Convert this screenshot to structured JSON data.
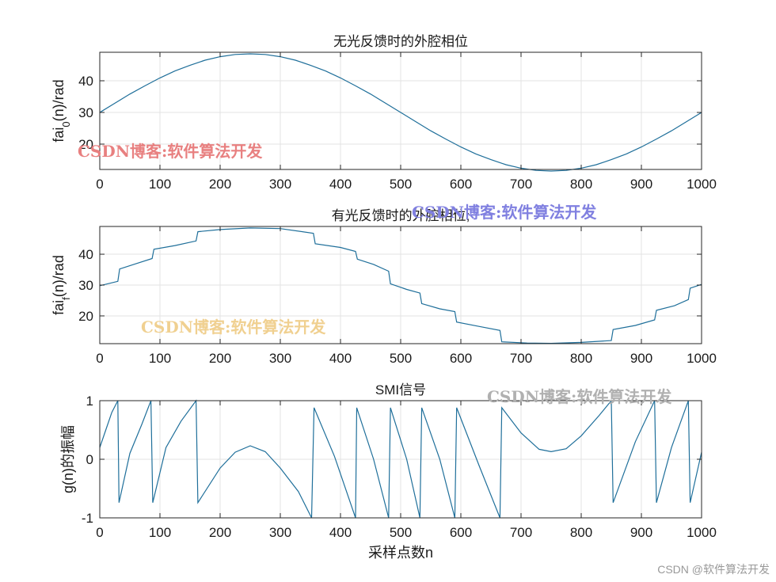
{
  "figure": {
    "credit": "CSDN @软件算法开发",
    "watermarks": [
      {
        "text": "CSDN博客:软件算法开发",
        "color": "#e88080"
      },
      {
        "text": "CSDN博客:软件算法开发",
        "color": "#8080e0"
      },
      {
        "text": "CSDN博客:软件算法开发",
        "color": "#f0d090"
      },
      {
        "text": "CSDN博客:软件算法开发",
        "color": "#b0b0b0"
      }
    ]
  },
  "chart_data": [
    {
      "type": "line",
      "title": "无光反馈时的外腔相位",
      "xlabel": "",
      "ylabel": "fai0(n)/rad",
      "ylabel_parts": {
        "base": "fai",
        "sub": "0",
        "rest": "(n)/rad"
      },
      "xlim": [
        0,
        1000
      ],
      "ylim": [
        12,
        49
      ],
      "xticks": [
        0,
        100,
        200,
        300,
        400,
        500,
        600,
        700,
        800,
        900,
        1000
      ],
      "yticks": [
        20,
        30,
        40
      ],
      "grid": true,
      "line_color": "#1f6f9a",
      "series": [
        {
          "values": [
            [
              0,
              30
            ],
            [
              25,
              32.9
            ],
            [
              50,
              35.8
            ],
            [
              75,
              38.4
            ],
            [
              100,
              40.9
            ],
            [
              125,
              43.1
            ],
            [
              150,
              44.9
            ],
            [
              175,
              46.5
            ],
            [
              200,
              47.6
            ],
            [
              225,
              48.3
            ],
            [
              250,
              48.5
            ],
            [
              275,
              48.3
            ],
            [
              300,
              47.6
            ],
            [
              325,
              46.5
            ],
            [
              350,
              44.9
            ],
            [
              375,
              43.1
            ],
            [
              400,
              40.9
            ],
            [
              425,
              38.4
            ],
            [
              450,
              35.8
            ],
            [
              475,
              32.9
            ],
            [
              500,
              30
            ],
            [
              525,
              27.1
            ],
            [
              550,
              24.2
            ],
            [
              575,
              21.6
            ],
            [
              600,
              19.1
            ],
            [
              625,
              16.9
            ],
            [
              650,
              15.1
            ],
            [
              675,
              13.5
            ],
            [
              700,
              12.4
            ],
            [
              725,
              11.7
            ],
            [
              750,
              11.5
            ],
            [
              775,
              11.7
            ],
            [
              800,
              12.4
            ],
            [
              825,
              13.5
            ],
            [
              850,
              15.1
            ],
            [
              875,
              16.9
            ],
            [
              900,
              19.1
            ],
            [
              925,
              21.6
            ],
            [
              950,
              24.2
            ],
            [
              975,
              27.1
            ],
            [
              1000,
              30
            ]
          ]
        }
      ]
    },
    {
      "type": "line",
      "title": "有光反馈时的外腔相位;",
      "xlabel": "",
      "ylabel": "faif(n)/rad",
      "ylabel_parts": {
        "base": "fai",
        "sub": "f",
        "rest": "(n)/rad"
      },
      "xlim": [
        0,
        1000
      ],
      "ylim": [
        11,
        49
      ],
      "xticks": [
        0,
        100,
        200,
        300,
        400,
        500,
        600,
        700,
        800,
        900,
        1000
      ],
      "yticks": [
        20,
        30,
        40
      ],
      "grid": true,
      "line_color": "#1f6f9a",
      "series": [
        {
          "values": [
            [
              0,
              29.8
            ],
            [
              15,
              30.5
            ],
            [
              30,
              31.2
            ],
            [
              33,
              35.2
            ],
            [
              60,
              36.9
            ],
            [
              87,
              38.6
            ],
            [
              90,
              41.6
            ],
            [
              125,
              42.8
            ],
            [
              160,
              44.3
            ],
            [
              163,
              47.3
            ],
            [
              200,
              48.0
            ],
            [
              250,
              48.5
            ],
            [
              300,
              48.3
            ],
            [
              355,
              46.8
            ],
            [
              358,
              43.4
            ],
            [
              400,
              42.2
            ],
            [
              425,
              40.9
            ],
            [
              428,
              38.4
            ],
            [
              455,
              36.7
            ],
            [
              480,
              34.5
            ],
            [
              483,
              30.4
            ],
            [
              510,
              28.6
            ],
            [
              532,
              27.4
            ],
            [
              535,
              24.0
            ],
            [
              565,
              22.3
            ],
            [
              590,
              21.4
            ],
            [
              593,
              18.0
            ],
            [
              630,
              16.6
            ],
            [
              665,
              15.3
            ],
            [
              668,
              11.6
            ],
            [
              710,
              11.2
            ],
            [
              750,
              11.1
            ],
            [
              800,
              11.4
            ],
            [
              850,
              12.0
            ],
            [
              853,
              15.6
            ],
            [
              890,
              16.9
            ],
            [
              922,
              18.7
            ],
            [
              925,
              21.8
            ],
            [
              955,
              23.3
            ],
            [
              978,
              25.3
            ],
            [
              981,
              29.0
            ],
            [
              1000,
              30.2
            ]
          ]
        }
      ]
    },
    {
      "type": "line",
      "title": "SMI信号",
      "xlabel": "采样点数n",
      "ylabel": "g(n)的振幅",
      "xlim": [
        0,
        1000
      ],
      "ylim": [
        -1,
        1
      ],
      "xticks": [
        0,
        100,
        200,
        300,
        400,
        500,
        600,
        700,
        800,
        900,
        1000
      ],
      "yticks": [
        -1,
        0,
        1
      ],
      "grid": true,
      "line_color": "#1f6f9a",
      "series": [
        {
          "values": [
            [
              0,
              0.2
            ],
            [
              10,
              0.5
            ],
            [
              20,
              0.8
            ],
            [
              30,
              1.0
            ],
            [
              32,
              -0.74
            ],
            [
              50,
              0.1
            ],
            [
              70,
              0.6
            ],
            [
              85,
              1.0
            ],
            [
              88,
              -0.74
            ],
            [
              110,
              0.2
            ],
            [
              135,
              0.65
            ],
            [
              160,
              1.0
            ],
            [
              163,
              -0.74
            ],
            [
              200,
              -0.15
            ],
            [
              225,
              0.12
            ],
            [
              250,
              0.23
            ],
            [
              275,
              0.13
            ],
            [
              300,
              -0.15
            ],
            [
              330,
              -0.55
            ],
            [
              352,
              -1.0
            ],
            [
              356,
              0.88
            ],
            [
              390,
              0.05
            ],
            [
              425,
              -1.0
            ],
            [
              427,
              0.88
            ],
            [
              455,
              0.0
            ],
            [
              480,
              -1.0
            ],
            [
              483,
              0.88
            ],
            [
              510,
              0.0
            ],
            [
              532,
              -1.0
            ],
            [
              535,
              0.88
            ],
            [
              565,
              0.0
            ],
            [
              590,
              -1.0
            ],
            [
              593,
              0.88
            ],
            [
              630,
              -0.1
            ],
            [
              665,
              -1.0
            ],
            [
              668,
              0.88
            ],
            [
              700,
              0.45
            ],
            [
              730,
              0.17
            ],
            [
              750,
              0.13
            ],
            [
              775,
              0.18
            ],
            [
              800,
              0.4
            ],
            [
              830,
              0.75
            ],
            [
              850,
              1.0
            ],
            [
              853,
              -0.74
            ],
            [
              890,
              0.3
            ],
            [
              922,
              1.0
            ],
            [
              925,
              -0.74
            ],
            [
              950,
              0.2
            ],
            [
              978,
              1.0
            ],
            [
              981,
              -0.74
            ],
            [
              1000,
              0.12
            ]
          ]
        }
      ]
    }
  ]
}
